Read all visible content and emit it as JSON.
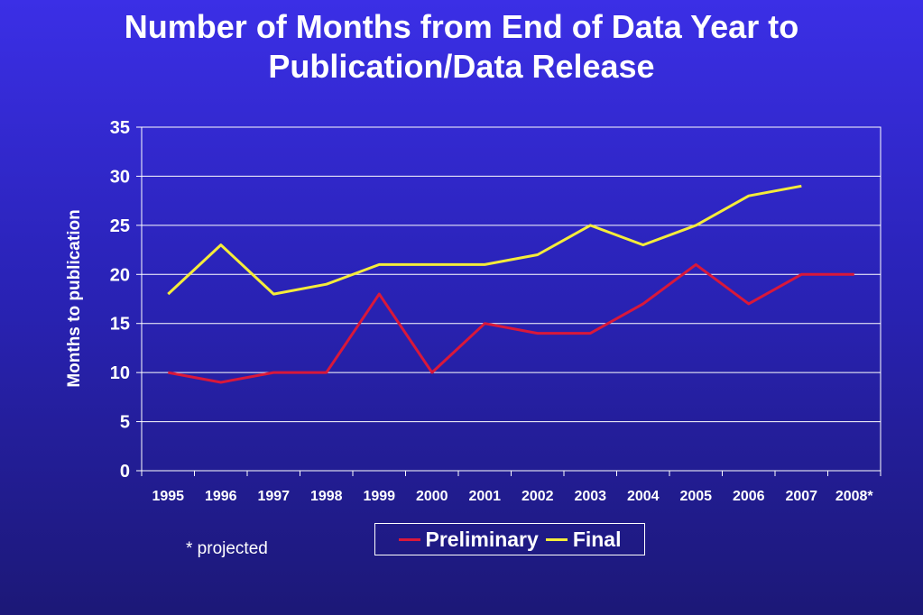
{
  "chart_data": {
    "type": "line",
    "title": [
      "Number of Months from End of Data Year to",
      "Publication/Data Release"
    ],
    "xlabel": "",
    "ylabel": "Months to publication",
    "categories": [
      "1995",
      "1996",
      "1997",
      "1998",
      "1999",
      "2000",
      "2001",
      "2002",
      "2003",
      "2004",
      "2005",
      "2006",
      "2007",
      "2008*"
    ],
    "ylim": [
      0,
      35
    ],
    "yticks": [
      0,
      5,
      10,
      15,
      20,
      25,
      30,
      35
    ],
    "grid": true,
    "legend_position": "bottom",
    "series": [
      {
        "name": "Preliminary",
        "color": "#d9183a",
        "values": [
          10,
          9,
          10,
          10,
          18,
          10,
          15,
          14,
          14,
          17,
          21,
          17,
          20,
          20
        ]
      },
      {
        "name": "Final",
        "color": "#f5ec3a",
        "values": [
          18,
          23,
          18,
          19,
          21,
          21,
          21,
          22,
          25,
          23,
          25,
          28,
          29,
          null
        ]
      }
    ]
  },
  "note": "* projected"
}
